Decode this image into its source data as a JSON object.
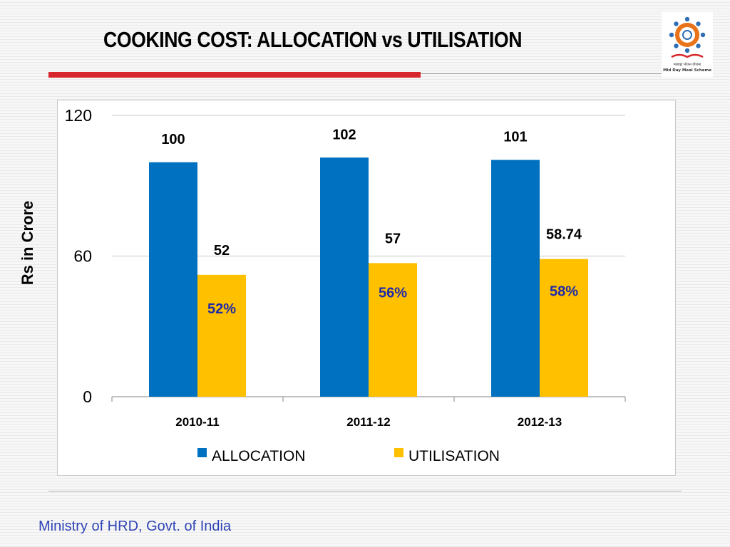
{
  "title": "COOKING COST: ALLOCATION vs UTILISATION",
  "footer": "Ministry of HRD, Govt. of India",
  "logo": {
    "icon": "mid-day-meal-scheme-logo",
    "text_hindi": "मध्याह्न भोजन योजना",
    "text_english": "Mid Day Meal Scheme"
  },
  "colors": {
    "title_rule": "#d7262b",
    "allocation": "#0070c0",
    "utilisation": "#ffc000",
    "percent_text": "#1f2aa8",
    "footer_text": "#2f45b6"
  },
  "chart_data": {
    "type": "bar",
    "title": "",
    "xlabel": "",
    "ylabel": "Rs in Crore",
    "ylim": [
      0,
      120
    ],
    "yticks": [
      0,
      60,
      120
    ],
    "grid": true,
    "legend": "bottom",
    "categories": [
      "2010-11",
      "2011-12",
      "2012-13"
    ],
    "series": [
      {
        "name": "ALLOCATION",
        "values": [
          100,
          102,
          101
        ],
        "labels": [
          "100",
          "102",
          "101"
        ]
      },
      {
        "name": "UTILISATION",
        "values": [
          52,
          57,
          58.74
        ],
        "labels": [
          "52",
          "57",
          "58.74"
        ],
        "percent_labels": [
          "52%",
          "56%",
          "58%"
        ]
      }
    ]
  }
}
